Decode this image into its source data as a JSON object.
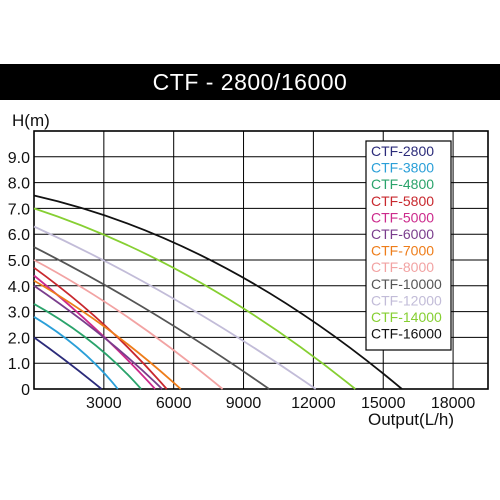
{
  "title": "CTF - 2800/16000",
  "chart_data": {
    "type": "line",
    "title": "CTF - 2800/16000",
    "xlabel": "Output(L/h)",
    "ylabel": "H(m)",
    "xlim": [
      0,
      19500
    ],
    "ylim": [
      0,
      10
    ],
    "xticks": [
      "3000",
      "6000",
      "9000",
      "12000",
      "15000",
      "18000"
    ],
    "yticks": [
      "0",
      "1.0",
      "2.0",
      "3.0",
      "4.0",
      "5.0",
      "6.0",
      "7.0",
      "8.0",
      "9.0"
    ],
    "grid": true,
    "legend_position": "right",
    "series": [
      {
        "name": "CTF-2800",
        "color": "#2b2b7a",
        "x": [
          0,
          1500,
          2900
        ],
        "y": [
          2.0,
          1.0,
          0
        ]
      },
      {
        "name": "CTF-3800",
        "color": "#2a9fd8",
        "x": [
          0,
          2000,
          3600
        ],
        "y": [
          2.8,
          1.5,
          0
        ]
      },
      {
        "name": "CTF-4800",
        "color": "#2aa36b",
        "x": [
          0,
          2500,
          4600
        ],
        "y": [
          3.3,
          1.8,
          0
        ]
      },
      {
        "name": "CTF-5800",
        "color": "#c8282e",
        "x": [
          0,
          3000,
          5700
        ],
        "y": [
          4.7,
          2.5,
          0
        ]
      },
      {
        "name": "CTF-5000",
        "color": "#cc2a8c",
        "x": [
          0,
          2800,
          5200
        ],
        "y": [
          4.4,
          2.2,
          0
        ]
      },
      {
        "name": "CTF-6000",
        "color": "#7a3d8c",
        "x": [
          0,
          3000,
          5500
        ],
        "y": [
          4.0,
          2.0,
          0
        ]
      },
      {
        "name": "CTF-7000",
        "color": "#ee7d1a",
        "x": [
          0,
          3200,
          6300
        ],
        "y": [
          4.2,
          2.3,
          0
        ]
      },
      {
        "name": "CTF-8000",
        "color": "#f2a3a3",
        "x": [
          0,
          4000,
          8100
        ],
        "y": [
          5.0,
          2.8,
          0
        ]
      },
      {
        "name": "CTF-10000",
        "color": "#555555",
        "x": [
          0,
          5000,
          10100
        ],
        "y": [
          5.5,
          3.0,
          0
        ]
      },
      {
        "name": "CTF-12000",
        "color": "#c2bcd8",
        "x": [
          0,
          6000,
          12100
        ],
        "y": [
          6.3,
          3.5,
          0
        ]
      },
      {
        "name": "CTF-14000",
        "color": "#86cf32",
        "x": [
          0,
          7000,
          13800
        ],
        "y": [
          7.0,
          4.2,
          0
        ]
      },
      {
        "name": "CTF-16000",
        "color": "#111111",
        "x": [
          0,
          8000,
          15800
        ],
        "y": [
          7.5,
          4.8,
          0
        ]
      }
    ]
  }
}
